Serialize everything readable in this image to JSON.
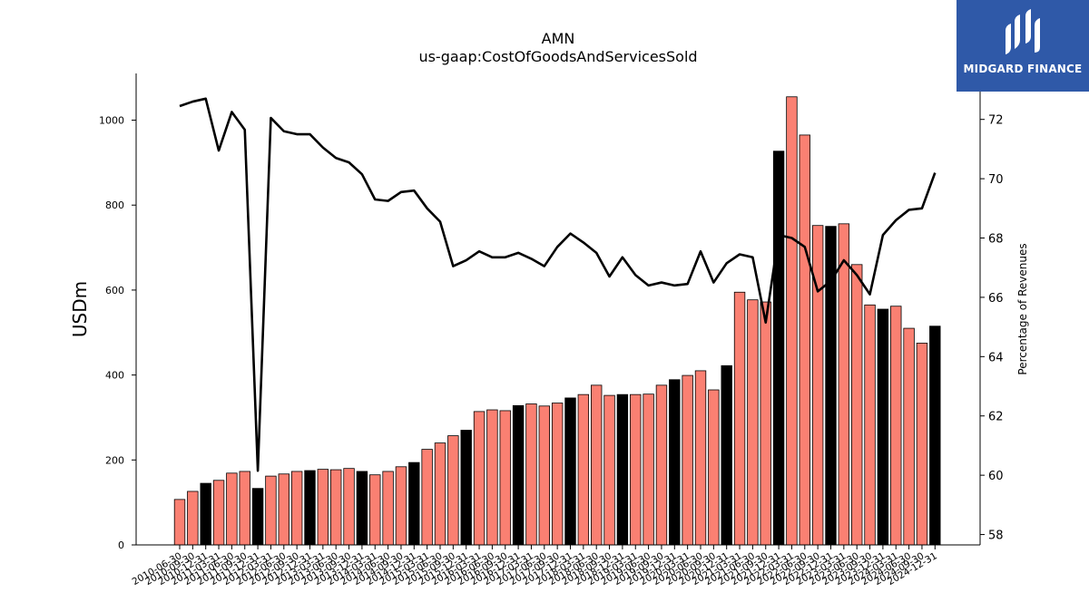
{
  "logo": {
    "text": "MIDGARD FINANCE"
  },
  "colors": {
    "odd_bar": "#fa8072",
    "q4_bar": "#000000",
    "line": "#000000",
    "logo_bg": "#2f59a8"
  },
  "chart_data": {
    "type": "bar",
    "title": "AMN",
    "subtitle": "us-gaap:CostOfGoodsAndServicesSold",
    "ylabel": "USDm",
    "y2label": "Percentage of Revenues",
    "ylim": [
      0,
      1110
    ],
    "y2lim": [
      57.65,
      73.55
    ],
    "yticks": [
      0,
      200,
      400,
      600,
      800,
      1000
    ],
    "y2ticks": [
      58,
      60,
      62,
      64,
      66,
      68,
      70,
      72
    ],
    "categories": [
      "2010-06-30",
      "2010-09-30",
      "2010-12-31",
      "2011-03-31",
      "2011-06-30",
      "2011-09-30",
      "2011-12-31",
      "2012-03-31",
      "2012-06-30",
      "2012-09-30",
      "2012-12-31",
      "2013-03-31",
      "2013-06-30",
      "2013-09-30",
      "2013-12-31",
      "2014-03-31",
      "2014-06-30",
      "2014-09-30",
      "2014-12-31",
      "2015-03-31",
      "2015-06-30",
      "2015-09-30",
      "2015-12-31",
      "2016-03-31",
      "2016-06-30",
      "2016-09-30",
      "2016-12-31",
      "2017-03-31",
      "2017-06-30",
      "2017-09-30",
      "2017-12-31",
      "2018-03-31",
      "2018-06-30",
      "2018-09-30",
      "2018-12-31",
      "2019-03-31",
      "2019-06-30",
      "2019-09-30",
      "2019-12-31",
      "2020-03-31",
      "2020-06-30",
      "2020-09-30",
      "2020-12-31",
      "2021-03-31",
      "2021-06-30",
      "2021-09-30",
      "2021-12-31",
      "2022-03-31",
      "2022-06-30",
      "2022-09-30",
      "2022-12-31",
      "2023-03-31",
      "2023-06-30",
      "2023-09-30",
      "2023-12-31",
      "2024-03-31",
      "2024-06-30",
      "2024-09-30",
      "2024-12-31"
    ],
    "x_tick_labels_visible": [
      "2010-06-30",
      "2010-09-30",
      "2010-12-31",
      "2011-03-31",
      "2011-06-30",
      "2011-09-30",
      "2011-12-31",
      "2012-03-31",
      "2012-06-30",
      "2012-09-30",
      "2012-12-31",
      "2013-03-31",
      "2013-06-30",
      "2013-09-30",
      "2013-12-31",
      "2014-03-31",
      "2014-06-30",
      "2014-09-30",
      "2014-12-31",
      "2015-03-31",
      "2015-06-30",
      "2015-09-30",
      "2015-12-31",
      "2016-03-31",
      "2016-06-30",
      "2016-09-30",
      "2016-12-31",
      "2017-03-31",
      "2017-06-30",
      "2017-09-30",
      "2017-12-31",
      "2018-03-31",
      "2018-06-30",
      "2018-09-30",
      "2018-12-31",
      "2019-03-31",
      "2019-06-30",
      "2019-09-30",
      "2019-12-31",
      "2020-03-31",
      "2020-06-30",
      "2020-09-30",
      "2020-12-31",
      "2021-03-31",
      "2021-06-30",
      "2021-09-30",
      "2021-12-31",
      "2022-03-31",
      "2022-06-30",
      "2022-09-30",
      "2022-12-31",
      "2023-03-31",
      "2023-06-30",
      "2023-09-30",
      "2023-12-31",
      "2024-03-31",
      "2024-06-30",
      "2024-09-30",
      "2024-12-31"
    ],
    "series": [
      {
        "type": "bar",
        "values": [
          107,
          126,
          145,
          152,
          169,
          173,
          133,
          162,
          167,
          173,
          175,
          178,
          177,
          180,
          173,
          165,
          173,
          184,
          194,
          225,
          240,
          257,
          270,
          314,
          318,
          316,
          328,
          332,
          327,
          334,
          346,
          354,
          376,
          352,
          354,
          354,
          355,
          376,
          389,
          399,
          410,
          365,
          422,
          595,
          577,
          572,
          927,
          1055,
          965,
          752,
          750,
          756,
          660,
          565,
          555,
          562,
          510,
          475,
          515
        ]
      },
      {
        "type": "line",
        "axis": "right",
        "values": [
          72.45,
          72.6,
          72.7,
          70.95,
          72.25,
          71.65,
          60.15,
          72.05,
          71.6,
          71.5,
          71.5,
          71.05,
          70.7,
          70.55,
          70.15,
          69.3,
          69.25,
          69.55,
          69.6,
          69.0,
          68.55,
          67.05,
          67.25,
          67.55,
          67.35,
          67.35,
          67.5,
          67.3,
          67.05,
          67.7,
          68.15,
          67.85,
          67.5,
          66.7,
          67.35,
          66.75,
          66.4,
          66.5,
          66.4,
          66.45,
          67.55,
          66.5,
          67.15,
          67.45,
          67.35,
          65.15,
          68.1,
          68.0,
          67.7,
          66.2,
          66.55,
          67.25,
          66.75,
          66.1,
          68.1,
          68.6,
          68.95,
          69.0,
          70.2
        ]
      }
    ],
    "grid": false,
    "legend": "none"
  }
}
